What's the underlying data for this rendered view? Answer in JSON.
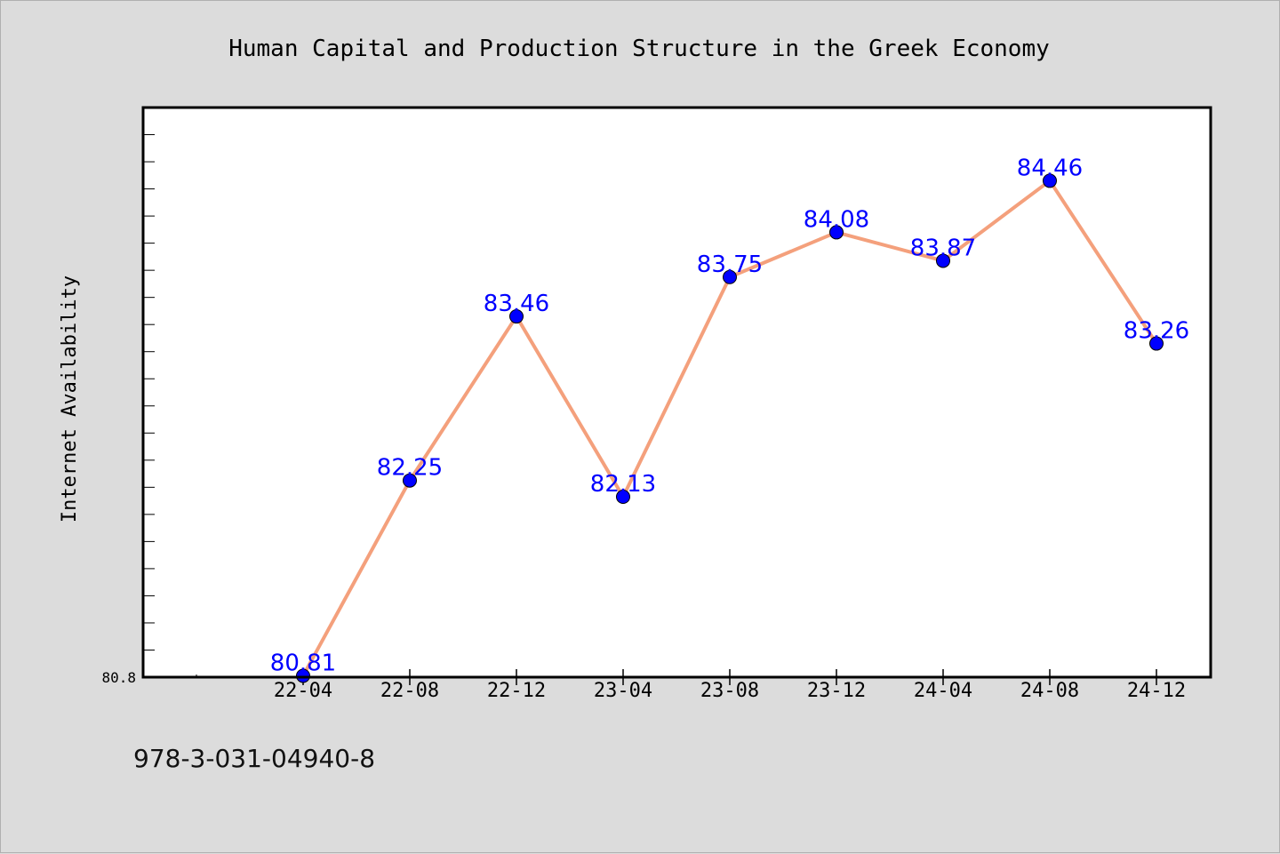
{
  "chart_data": {
    "type": "line",
    "title": "Human Capital and Production Structure in the Greek Economy",
    "xlabel": "",
    "ylabel": "Internet Availability",
    "categories": [
      "22-04",
      "22-08",
      "22-12",
      "23-04",
      "23-08",
      "23-12",
      "24-04",
      "24-08",
      "24-12"
    ],
    "series": [
      {
        "values": [
          80.81,
          82.25,
          83.46,
          82.13,
          83.75,
          84.08,
          83.87,
          84.46,
          83.26
        ],
        "labels": [
          "80.81",
          "82.25",
          "83.46",
          "82.13",
          "83.75",
          "84.08",
          "83.87",
          "84.46",
          "83.26"
        ]
      }
    ],
    "ylim": [
      80.8,
      85.0
    ],
    "yticks": [
      80.8
    ],
    "ytick_labels": [
      "80.8"
    ],
    "grid": false,
    "colors": {
      "line": "#f4a07c",
      "marker": "#0000ff",
      "data_label": "#0000ff"
    }
  },
  "footer": {
    "isbn": "978-3-031-04940-8"
  }
}
